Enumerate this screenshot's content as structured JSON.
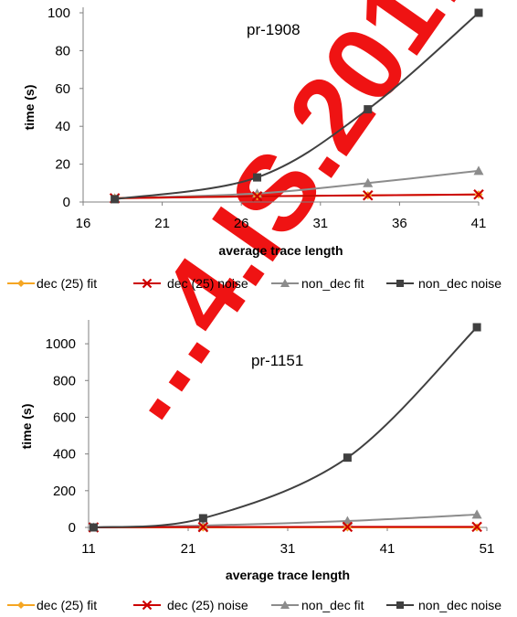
{
  "colors": {
    "dec_fit": "#f5a623",
    "dec_noise": "#cc0000",
    "non_dec_fit": "#8c8c8c",
    "non_dec_noise": "#404040",
    "axis": "#7f7f7f",
    "watermark": "#ee0000"
  },
  "watermark": "…4.IS.201…",
  "chart_data": [
    {
      "type": "line",
      "title": "pr-1908",
      "xlabel": "average trace length",
      "ylabel": "time (s)",
      "xlim": [
        16,
        41
      ],
      "ylim": [
        0,
        100
      ],
      "xticks": [
        "16",
        "21",
        "26",
        "31",
        "36",
        "41"
      ],
      "yticks": [
        "0",
        "20",
        "40",
        "60",
        "80",
        "100"
      ],
      "grid": false,
      "legend": "bottom",
      "series": [
        {
          "name": "dec (25) fit",
          "marker": "diamond",
          "x": [
            18,
            27,
            34,
            41
          ],
          "y": [
            2,
            3,
            3.5,
            4
          ]
        },
        {
          "name": "dec (25) noise",
          "marker": "x",
          "x": [
            18,
            27,
            34,
            41
          ],
          "y": [
            2,
            3,
            3.5,
            4
          ]
        },
        {
          "name": "non_dec fit",
          "marker": "triangle",
          "x": [
            18,
            27,
            34,
            41
          ],
          "y": [
            2,
            4.5,
            10,
            16.5
          ]
        },
        {
          "name": "non_dec noise",
          "marker": "square",
          "x": [
            18,
            27,
            34,
            41
          ],
          "y": [
            1.5,
            13,
            49,
            100
          ]
        }
      ]
    },
    {
      "type": "line",
      "title": "pr-1151",
      "xlabel": "average trace length",
      "ylabel": "time (s)",
      "xlim": [
        11,
        51
      ],
      "ylim": [
        0,
        1100
      ],
      "xticks": [
        "11",
        "21",
        "31",
        "41",
        "51"
      ],
      "yticks": [
        "0",
        "200",
        "400",
        "600",
        "800",
        "1000"
      ],
      "grid": false,
      "legend": "bottom",
      "series": [
        {
          "name": "dec (25) fit",
          "marker": "diamond",
          "x": [
            11.5,
            22.5,
            37,
            50
          ],
          "y": [
            0,
            0,
            0,
            0
          ]
        },
        {
          "name": "dec (25) noise",
          "marker": "x",
          "x": [
            11.5,
            22.5,
            37,
            50
          ],
          "y": [
            0,
            2,
            3,
            3
          ]
        },
        {
          "name": "non_dec fit",
          "marker": "triangle",
          "x": [
            11.5,
            22.5,
            37,
            50
          ],
          "y": [
            0,
            10,
            35,
            70
          ]
        },
        {
          "name": "non_dec noise",
          "marker": "square",
          "x": [
            11.5,
            22.5,
            37,
            50
          ],
          "y": [
            0,
            50,
            380,
            1090
          ]
        }
      ]
    }
  ]
}
